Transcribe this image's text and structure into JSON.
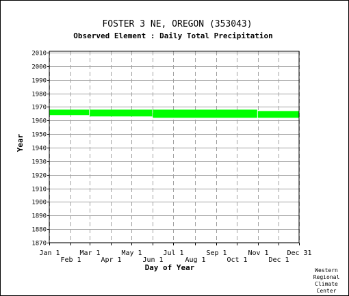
{
  "chart_data": {
    "type": "bar",
    "title": "FOSTER 3 NE, OREGON   (353043)",
    "subtitle": "Observed Element : Daily Total Precipitation",
    "xlabel": "Day of Year",
    "ylabel": "Year",
    "ylim": [
      1870,
      2011
    ],
    "yticks": [
      1870,
      1880,
      1890,
      1900,
      1910,
      1920,
      1930,
      1940,
      1950,
      1960,
      1970,
      1980,
      1990,
      2000,
      2010
    ],
    "xlim": [
      1,
      365
    ],
    "xticks_upper": [
      {
        "label": "Jan 1",
        "day": 1
      },
      {
        "label": "Mar 1",
        "day": 60
      },
      {
        "label": "May 1",
        "day": 121
      },
      {
        "label": "Jul 1",
        "day": 182
      },
      {
        "label": "Sep 1",
        "day": 244
      },
      {
        "label": "Nov 1",
        "day": 305
      },
      {
        "label": "Dec 31",
        "day": 365
      }
    ],
    "xticks_lower": [
      {
        "label": "Feb 1",
        "day": 32
      },
      {
        "label": "Apr 1",
        "day": 91
      },
      {
        "label": "Jun 1",
        "day": 152
      },
      {
        "label": "Aug 1",
        "day": 213
      },
      {
        "label": "Oct 1",
        "day": 274
      },
      {
        "label": "Dec 1",
        "day": 335
      }
    ],
    "grid": true,
    "bar_color": "#00ff00",
    "segments": [
      {
        "start_day": 1,
        "end_day": 59,
        "start_year": 1964,
        "end_year": 1968
      },
      {
        "start_day": 60,
        "end_day": 151,
        "start_year": 1963,
        "end_year": 1968
      },
      {
        "start_day": 152,
        "end_day": 304,
        "start_year": 1962,
        "end_year": 1968
      },
      {
        "start_day": 305,
        "end_day": 365,
        "start_year": 1962,
        "end_year": 1967
      }
    ]
  },
  "credit": [
    "Western",
    "Regional",
    "Climate",
    "Center"
  ]
}
